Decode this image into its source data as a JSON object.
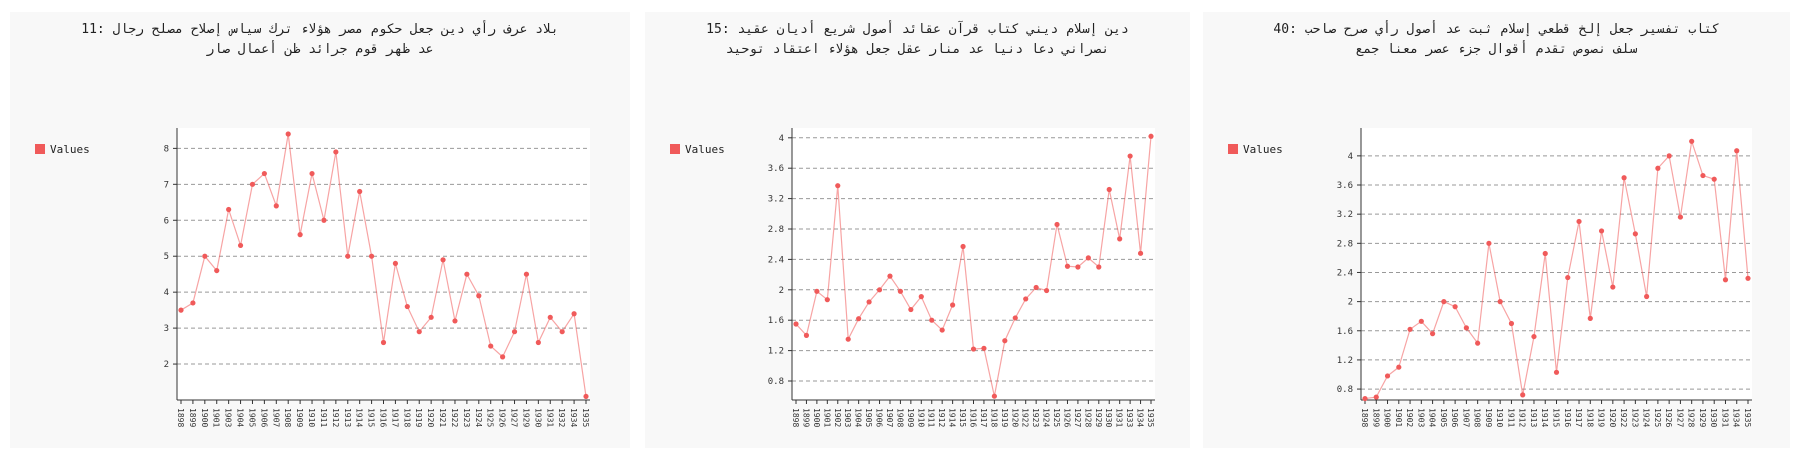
{
  "chart_data": [
    {
      "type": "line",
      "title": "11: بلاد عرف رأي دين جعل حكوم مصر هؤلاء ترك سياس إصلاح مصلح رجال عد ظهر قوم جرائد ظن أعمال صار",
      "categories": [
        "1898",
        "1899",
        "1900",
        "1901",
        "1903",
        "1904",
        "1905",
        "1906",
        "1907",
        "1908",
        "1909",
        "1910",
        "1911",
        "1912",
        "1913",
        "1914",
        "1915",
        "1916",
        "1917",
        "1918",
        "1919",
        "1920",
        "1921",
        "1922",
        "1923",
        "1924",
        "1925",
        "1926",
        "1927",
        "1929",
        "1930",
        "1931",
        "1932",
        "1934",
        "1935"
      ],
      "series": [
        {
          "name": "Values",
          "color": "#f05a5a",
          "values": [
            3.5,
            3.7,
            5.0,
            4.6,
            6.3,
            5.3,
            7.0,
            7.3,
            6.4,
            8.4,
            5.6,
            7.3,
            6.0,
            7.9,
            5.0,
            6.8,
            5.0,
            2.6,
            4.8,
            3.6,
            2.9,
            3.3,
            4.9,
            3.2,
            4.5,
            3.9,
            2.5,
            2.2,
            2.9,
            4.5,
            2.6,
            3.3,
            2.9,
            3.4,
            1.1
          ]
        }
      ],
      "ylim": [
        1.0,
        8.4
      ],
      "yticks": [
        2,
        3,
        4,
        5,
        6,
        7,
        8
      ],
      "grid": true,
      "legend": "left"
    },
    {
      "type": "line",
      "title": "15: دين إسلام ديني كتاب قرآن عقائد أصول شريع أديان عقيد نصراني دعا دنيا عد منار عقل جعل هؤلاء اعتقاد توحيد",
      "categories": [
        "1898",
        "1899",
        "1900",
        "1901",
        "1902",
        "1903",
        "1904",
        "1905",
        "1906",
        "1907",
        "1908",
        "1909",
        "1910",
        "1911",
        "1912",
        "1914",
        "1915",
        "1916",
        "1917",
        "1918",
        "1919",
        "1920",
        "1922",
        "1923",
        "1924",
        "1925",
        "1926",
        "1927",
        "1928",
        "1929",
        "1930",
        "1931",
        "1933",
        "1934",
        "1935"
      ],
      "series": [
        {
          "name": "Values",
          "color": "#f05a5a",
          "values": [
            1.55,
            1.4,
            1.98,
            1.87,
            3.37,
            1.35,
            1.62,
            1.84,
            2.0,
            2.18,
            1.98,
            1.74,
            1.91,
            1.6,
            1.47,
            1.8,
            2.57,
            1.22,
            1.23,
            0.6,
            1.33,
            1.63,
            1.88,
            2.03,
            1.99,
            2.86,
            2.31,
            2.3,
            2.42,
            2.3,
            3.32,
            2.67,
            3.76,
            2.48,
            4.02
          ]
        }
      ],
      "ylim": [
        0.55,
        4.05
      ],
      "yticks": [
        0.8,
        1.2,
        1.6,
        2,
        2.4,
        2.8,
        3.2,
        3.6,
        4
      ],
      "grid": true,
      "legend": "left"
    },
    {
      "type": "line",
      "title": "40: كتاب تفسير جعل إلخ قطعي إسلام ثبت عد أصول رأي صرح صاحب سلف نصوص تقدم أقوال جزء عصر معنا جمع",
      "categories": [
        "1898",
        "1899",
        "1900",
        "1901",
        "1902",
        "1903",
        "1904",
        "1905",
        "1906",
        "1907",
        "1908",
        "1909",
        "1910",
        "1911",
        "1912",
        "1913",
        "1914",
        "1915",
        "1916",
        "1917",
        "1918",
        "1919",
        "1920",
        "1922",
        "1923",
        "1924",
        "1925",
        "1926",
        "1927",
        "1928",
        "1929",
        "1930",
        "1931",
        "1934",
        "1935"
      ],
      "series": [
        {
          "name": "Values",
          "color": "#f05a5a",
          "values": [
            0.67,
            0.69,
            0.98,
            1.1,
            1.62,
            1.73,
            1.56,
            2.0,
            1.93,
            1.64,
            1.43,
            2.8,
            2.0,
            1.7,
            0.72,
            1.52,
            2.66,
            1.03,
            2.33,
            3.1,
            1.77,
            2.97,
            2.2,
            3.7,
            2.93,
            2.07,
            3.83,
            4.0,
            3.16,
            4.2,
            3.73,
            3.68,
            2.3,
            4.07,
            2.32
          ]
        }
      ],
      "ylim": [
        0.65,
        4.3
      ],
      "yticks": [
        0.8,
        1.2,
        1.6,
        2,
        2.4,
        2.8,
        3.2,
        3.6,
        4
      ],
      "grid": true,
      "legend": "left"
    }
  ]
}
